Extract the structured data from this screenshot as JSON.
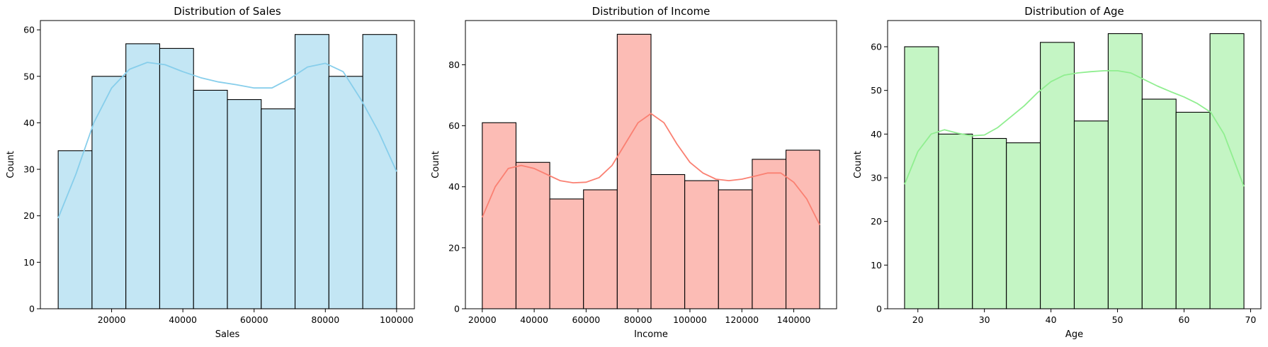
{
  "chart_data": [
    {
      "type": "bar",
      "title": "Distribution of Sales",
      "xlabel": "Sales",
      "ylabel": "Count",
      "bin_edges": [
        5000,
        14500,
        24000,
        33500,
        43000,
        52500,
        62000,
        71500,
        81000,
        90500,
        100000
      ],
      "values": [
        34,
        50,
        57,
        56,
        47,
        45,
        43,
        59,
        50,
        59
      ],
      "kde": {
        "x": [
          5000,
          10000,
          15000,
          20000,
          25000,
          30000,
          35000,
          40000,
          45000,
          50000,
          55000,
          60000,
          65000,
          70000,
          75000,
          80000,
          85000,
          90000,
          95000,
          100000
        ],
        "y": [
          19.5,
          29,
          40,
          47.5,
          51.5,
          53,
          52.5,
          51,
          49.7,
          48.8,
          48.2,
          47.5,
          47.5,
          49.5,
          52,
          52.8,
          51,
          45,
          38,
          29.5
        ]
      },
      "xlim": [
        0,
        105000
      ],
      "ylim": [
        0,
        62
      ],
      "xticks": [
        20000,
        40000,
        60000,
        80000,
        100000
      ],
      "yticks": [
        0,
        10,
        20,
        30,
        40,
        50,
        60
      ],
      "colors": {
        "fill": "#c3e6f4",
        "line": "#87ceeb"
      }
    },
    {
      "type": "bar",
      "title": "Distribution of Income",
      "xlabel": "Income",
      "ylabel": "Count",
      "bin_edges": [
        20000,
        33000,
        46000,
        59000,
        72000,
        85000,
        98000,
        111000,
        124000,
        137000,
        150000
      ],
      "values": [
        61,
        48,
        36,
        39,
        90,
        44,
        42,
        39,
        49,
        52
      ],
      "kde": {
        "x": [
          20000,
          25000,
          30000,
          35000,
          40000,
          45000,
          50000,
          55000,
          60000,
          65000,
          70000,
          75000,
          80000,
          85000,
          90000,
          95000,
          100000,
          105000,
          110000,
          115000,
          120000,
          125000,
          130000,
          135000,
          140000,
          145000,
          150000
        ],
        "y": [
          30,
          40,
          46,
          47,
          46,
          44,
          42,
          41.3,
          41.5,
          43,
          47,
          54,
          61,
          64,
          61,
          54,
          48,
          44.5,
          42.5,
          42,
          42.5,
          43.5,
          44.5,
          44.5,
          41.5,
          36,
          27.5
        ]
      },
      "xlim": [
        13500,
        156500
      ],
      "ylim": [
        0,
        94.5
      ],
      "xticks": [
        20000,
        40000,
        60000,
        80000,
        100000,
        120000,
        140000
      ],
      "yticks": [
        0,
        20,
        40,
        60,
        80
      ],
      "colors": {
        "fill": "#fcbcb5",
        "line": "#fa8072"
      }
    },
    {
      "type": "bar",
      "title": "Distribution of Age",
      "xlabel": "Age",
      "ylabel": "Count",
      "bin_edges": [
        18,
        23.1,
        28.2,
        33.3,
        38.4,
        43.5,
        48.6,
        53.7,
        58.8,
        63.9,
        69
      ],
      "values": [
        60,
        40,
        39,
        38,
        61,
        43,
        63,
        48,
        45,
        63
      ],
      "kde": {
        "x": [
          18,
          20,
          22,
          24,
          26,
          28,
          30,
          32,
          34,
          36,
          38,
          40,
          42,
          44,
          46,
          48,
          50,
          52,
          54,
          56,
          58,
          60,
          62,
          64,
          66,
          69
        ],
        "y": [
          28.5,
          36,
          40,
          41,
          40.2,
          39.6,
          39.8,
          41.5,
          44,
          46.5,
          49.5,
          52,
          53.5,
          54,
          54.3,
          54.5,
          54.5,
          54,
          52.5,
          51,
          49.7,
          48.5,
          47,
          45,
          40,
          28
        ]
      },
      "xlim": [
        15.45,
        71.55
      ],
      "ylim": [
        0,
        66
      ],
      "xticks": [
        20,
        30,
        40,
        50,
        60,
        70
      ],
      "yticks": [
        0,
        10,
        20,
        30,
        40,
        50,
        60
      ],
      "colors": {
        "fill": "#c4f5c4",
        "line": "#90ee90"
      }
    }
  ]
}
